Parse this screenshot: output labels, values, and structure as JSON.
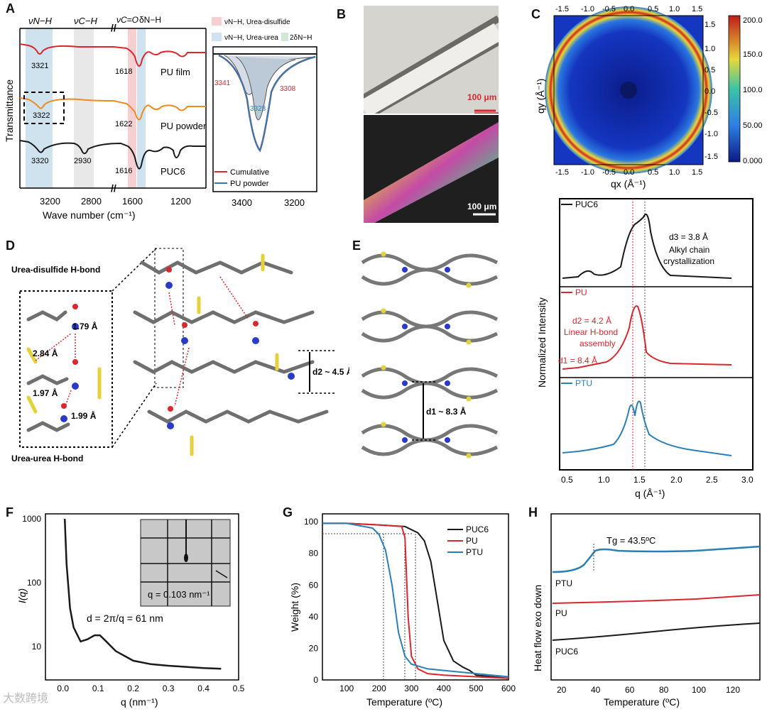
{
  "panels": {
    "A": {
      "letter": "A"
    },
    "B": {
      "letter": "B"
    },
    "C": {
      "letter": "C"
    },
    "D": {
      "letter": "D"
    },
    "E": {
      "letter": "E"
    },
    "F": {
      "letter": "F"
    },
    "G": {
      "letter": "G"
    },
    "H": {
      "letter": "H"
    }
  },
  "colors": {
    "red": "#d7282f",
    "orange": "#ee8a1f",
    "black": "#1a1a1a",
    "blue": "#2a7fb5",
    "cyan_fill": "#cfe3ef",
    "pink_fill": "#f6cfd3",
    "green_fill": "#cfe9d4",
    "gray_fill": "#e8e8e8"
  },
  "chart_data": [
    {
      "id": "A-left",
      "type": "line",
      "ylabel": "Transmittance",
      "xlabel": "Wave number (cm⁻¹)",
      "xticks": [
        "3200",
        "2800",
        "1600",
        "1200"
      ],
      "band_labels": [
        "νₙ₋ₕ",
        "νC−H",
        "νC=O",
        "δN−H"
      ],
      "band_labels_text": {
        "nu_nh": "νN−H",
        "nu_ch": "νC−H",
        "nu_co": "νC=O",
        "delta_nh": "δN−H"
      },
      "series": [
        {
          "name": "PU film",
          "color": "#d7282f",
          "peaks": [
            "3321",
            "1618"
          ]
        },
        {
          "name": "PU powder",
          "color": "#ee8a1f",
          "peaks": [
            "3322",
            "1622"
          ]
        },
        {
          "name": "PUC6",
          "color": "#1a1a1a",
          "peaks": [
            "3320",
            "2930",
            "1616"
          ]
        }
      ]
    },
    {
      "id": "A-right",
      "type": "line",
      "legend_bands": [
        "νN−H, Urea-disulfide",
        "νN−H, Urea-urea",
        "2δN−H"
      ],
      "xticks": [
        "3400",
        "3200"
      ],
      "peak_labels": [
        "3341",
        "3308",
        "3328"
      ],
      "series": [
        {
          "name": "Cumulative",
          "color": "#d7282f"
        },
        {
          "name": "PU powder",
          "color": "#2a7fb5"
        }
      ]
    },
    {
      "id": "B",
      "type": "image",
      "scale_labels": [
        "100 μm",
        "100 μm"
      ]
    },
    {
      "id": "C",
      "type": "heatmap",
      "xlabel": "qx (Å⁻¹)",
      "ylabel": "qy (Å⁻¹)",
      "xlim": [
        -1.7,
        1.7
      ],
      "ylim": [
        -1.7,
        1.7
      ],
      "ticks": [
        "-1.5",
        "-1.0",
        "-0.5",
        "0.0",
        "0.5",
        "1.0",
        "1.5"
      ],
      "colorbar_ticks": [
        "200.0",
        "150.0",
        "100.0",
        "50.00",
        "0.000"
      ],
      "ring_radius": 1.5
    },
    {
      "id": "stack",
      "type": "line",
      "xlabel": "q (Å⁻¹)",
      "ylabel": "Normalized Intensity",
      "xlim": [
        0.3,
        3.0
      ],
      "xticks": [
        "0.5",
        "1.0",
        "1.5",
        "2.0",
        "2.5",
        "3.0"
      ],
      "series": [
        {
          "name": "PUC6",
          "color": "#1a1a1a",
          "annotation": [
            "d3 = 3.8 Å",
            "Alkyl chain",
            "crystallization"
          ]
        },
        {
          "name": "PU",
          "color": "#d7282f",
          "annotation": [
            "d2 = 4.2 Å",
            "Linear H-bond",
            "assembly",
            "d1 = 8.4 Å"
          ]
        },
        {
          "name": "PTU",
          "color": "#2a7fb5"
        }
      ]
    },
    {
      "id": "D",
      "type": "image",
      "labels": [
        "Urea-disulfide H-bond",
        "Urea-urea H-bond",
        "2.84 Å",
        "1.79 Å",
        "1.97 Å",
        "1.99 Å",
        "d2 ~ 4.5 Å"
      ]
    },
    {
      "id": "E",
      "type": "image",
      "labels": [
        "d1 ~ 8.3 Å"
      ]
    },
    {
      "id": "F",
      "type": "line",
      "xlabel": "q (nm⁻¹)",
      "ylabel": "I(q)",
      "xlim": [
        -0.05,
        0.5
      ],
      "ylim": [
        3,
        1200
      ],
      "yscale": "log",
      "xticks": [
        "0.0",
        "0.1",
        "0.2",
        "0.3",
        "0.4",
        "0.5"
      ],
      "yticks": [
        "1000",
        "100",
        "10"
      ],
      "annotation": "d = 2π/q = 61 nm",
      "inset_label": "q = 0.103 nm⁻¹",
      "x": [
        0.005,
        0.01,
        0.02,
        0.03,
        0.05,
        0.07,
        0.09,
        0.105,
        0.12,
        0.15,
        0.2,
        0.25,
        0.3,
        0.35,
        0.4,
        0.45
      ],
      "y": [
        1000,
        200,
        40,
        20,
        12,
        13,
        15,
        15,
        12.5,
        8.5,
        6,
        5.3,
        5,
        4.8,
        4.6,
        4.5
      ]
    },
    {
      "id": "G",
      "type": "line",
      "xlabel": "Temperature (ºC)",
      "ylabel": "Weight (%)",
      "xlim": [
        25,
        600
      ],
      "ylim": [
        0,
        105
      ],
      "xticks": [
        "100",
        "200",
        "300",
        "400",
        "500",
        "600"
      ],
      "yticks": [
        "0",
        "20",
        "40",
        "60",
        "80",
        "100"
      ],
      "series": [
        {
          "name": "PUC6",
          "color": "#1a1a1a",
          "x": [
            25,
            100,
            200,
            280,
            320,
            340,
            360,
            380,
            400,
            430,
            460,
            480,
            500,
            600
          ],
          "y": [
            99,
            99,
            98,
            97,
            93,
            88,
            75,
            50,
            25,
            12,
            8,
            6,
            3,
            1
          ]
        },
        {
          "name": "PU",
          "color": "#d7282f",
          "x": [
            25,
            100,
            200,
            270,
            280,
            290,
            300,
            320,
            350,
            400,
            500,
            600
          ],
          "y": [
            99,
            99,
            98,
            97,
            90,
            40,
            15,
            7,
            4,
            3,
            2,
            1
          ]
        },
        {
          "name": "PTU",
          "color": "#2a7fb5",
          "x": [
            25,
            100,
            180,
            200,
            220,
            240,
            260,
            280,
            300,
            350,
            400,
            500,
            600
          ],
          "y": [
            99,
            99,
            96,
            92,
            82,
            60,
            30,
            15,
            10,
            7,
            6,
            4,
            2
          ]
        }
      ]
    },
    {
      "id": "H",
      "type": "line",
      "xlabel": "Temperature (ºC)",
      "ylabel": "Heat flow exo down",
      "xlim": [
        15,
        135
      ],
      "xticks": [
        "20",
        "40",
        "60",
        "80",
        "100",
        "120"
      ],
      "annotation": "Tg = 43.5ºC",
      "series": [
        {
          "name": "PTU",
          "color": "#2a7fb5"
        },
        {
          "name": "PU",
          "color": "#d7282f"
        },
        {
          "name": "PUC6",
          "color": "#1a1a1a"
        }
      ]
    }
  ],
  "watermark": "大数跨境"
}
